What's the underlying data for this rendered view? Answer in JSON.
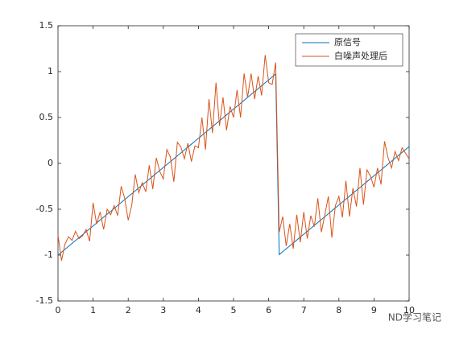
{
  "chart_data": {
    "type": "line",
    "x": [
      0,
      0.1,
      0.2,
      0.3,
      0.4,
      0.5,
      0.6,
      0.7,
      0.8,
      0.9,
      1,
      1.1,
      1.2,
      1.3,
      1.4,
      1.5,
      1.6,
      1.7,
      1.8,
      1.9,
      2,
      2.1,
      2.2,
      2.3,
      2.4,
      2.5,
      2.6,
      2.7,
      2.8,
      2.9,
      3,
      3.1,
      3.2,
      3.3,
      3.4,
      3.5,
      3.6,
      3.7,
      3.8,
      3.9,
      4,
      4.1,
      4.2,
      4.3,
      4.4,
      4.5,
      4.6,
      4.7,
      4.8,
      4.9,
      5,
      5.1,
      5.2,
      5.3,
      5.4,
      5.5,
      5.6,
      5.7,
      5.8,
      5.9,
      6,
      6.1,
      6.2,
      6.3,
      6.4,
      6.5,
      6.6,
      6.7,
      6.8,
      6.9,
      7,
      7.1,
      7.2,
      7.3,
      7.4,
      7.5,
      7.6,
      7.7,
      7.8,
      7.9,
      8,
      8.1,
      8.2,
      8.3,
      8.4,
      8.5,
      8.6,
      8.7,
      8.8,
      8.9,
      9,
      9.1,
      9.2,
      9.3,
      9.4,
      9.5,
      9.6,
      9.7,
      9.8,
      9.9,
      10
    ],
    "series": [
      {
        "name": "原信号",
        "color": "#0072BD",
        "values": [
          -1,
          -0.968,
          -0.936,
          -0.905,
          -0.873,
          -0.841,
          -0.809,
          -0.777,
          -0.745,
          -0.714,
          -0.682,
          -0.65,
          -0.618,
          -0.586,
          -0.554,
          -0.523,
          -0.491,
          -0.459,
          -0.427,
          -0.395,
          -0.363,
          -0.332,
          -0.3,
          -0.268,
          -0.236,
          -0.204,
          -0.172,
          -0.141,
          -0.109,
          -0.077,
          -0.045,
          -0.013,
          0.019,
          0.05,
          0.082,
          0.114,
          0.146,
          0.178,
          0.21,
          0.241,
          0.273,
          0.305,
          0.337,
          0.369,
          0.401,
          0.432,
          0.464,
          0.496,
          0.528,
          0.56,
          0.592,
          0.623,
          0.655,
          0.687,
          0.719,
          0.751,
          0.783,
          0.814,
          0.846,
          0.878,
          0.91,
          0.942,
          0.974,
          -0.995,
          -0.963,
          -0.931,
          -0.899,
          -0.867,
          -0.836,
          -0.804,
          -0.772,
          -0.74,
          -0.708,
          -0.676,
          -0.645,
          -0.613,
          -0.581,
          -0.549,
          -0.517,
          -0.485,
          -0.454,
          -0.422,
          -0.39,
          -0.358,
          -0.326,
          -0.294,
          -0.263,
          -0.231,
          -0.199,
          -0.167,
          -0.135,
          -0.103,
          -0.072,
          -0.04,
          -0.008,
          0.024,
          0.056,
          0.088,
          0.12,
          0.151,
          0.183
        ]
      },
      {
        "name": "白噪声处理后",
        "color": "#D95319",
        "values": [
          -0.78,
          -1.06,
          -0.88,
          -0.8,
          -0.84,
          -0.74,
          -0.82,
          -0.79,
          -0.72,
          -0.85,
          -0.43,
          -0.66,
          -0.53,
          -0.72,
          -0.5,
          -0.56,
          -0.46,
          -0.57,
          -0.25,
          -0.38,
          -0.62,
          -0.46,
          -0.12,
          -0.32,
          -0.21,
          -0.31,
          -0.02,
          -0.28,
          0.06,
          -0.09,
          -0.17,
          0.15,
          0.07,
          -0.2,
          0.23,
          0.18,
          0.05,
          0.22,
          0.02,
          0.19,
          0.17,
          0.5,
          0.15,
          0.7,
          0.33,
          0.88,
          0.41,
          0.72,
          0.36,
          0.62,
          0.5,
          0.8,
          0.5,
          0.98,
          0.72,
          0.98,
          0.7,
          0.95,
          0.74,
          1.18,
          0.88,
          0.86,
          1.1,
          -0.75,
          -0.58,
          -0.9,
          -0.66,
          -0.93,
          -0.56,
          -0.86,
          -0.53,
          -0.82,
          -0.57,
          -0.69,
          -0.38,
          -0.75,
          -0.56,
          -0.36,
          -0.81,
          -0.46,
          -0.36,
          -0.59,
          -0.19,
          -0.58,
          -0.27,
          -0.47,
          -0.05,
          -0.45,
          -0.07,
          -0.14,
          -0.26,
          -0.05,
          -0.23,
          0.24,
          0.06,
          -0.05,
          0.13,
          0.03,
          0.17,
          0.11,
          0.05
        ]
      }
    ],
    "xlim": [
      0,
      10
    ],
    "xticks": [
      0,
      1,
      2,
      3,
      4,
      5,
      6,
      7,
      8,
      9,
      10
    ],
    "ylim": [
      -1.5,
      1.5
    ],
    "yticks": [
      -1.5,
      -1,
      -0.5,
      0,
      0.5,
      1,
      1.5
    ],
    "grid": false,
    "legend": "northeast",
    "watermark": "ND学习笔记"
  }
}
